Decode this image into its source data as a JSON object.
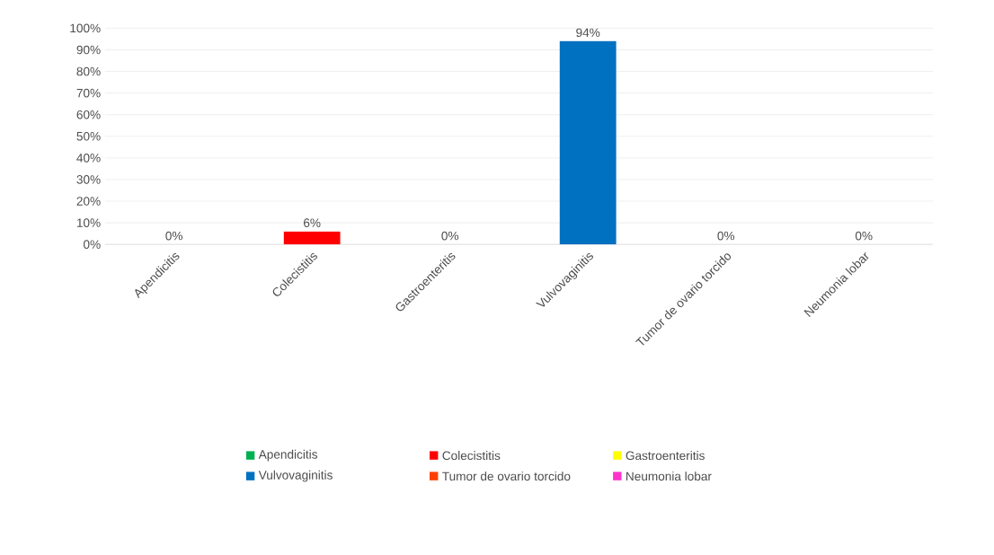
{
  "chart_data": {
    "type": "bar",
    "categories": [
      "Apendicitis",
      "Colecistitis",
      "Gastroenteritis",
      "Vulvovaginitis",
      "Tumor de ovario torcido",
      "Neumonia lobar"
    ],
    "series": [
      {
        "name": "Apendicitis",
        "color": "#00b050",
        "values": [
          0,
          null,
          null,
          null,
          null,
          null
        ],
        "value_labels": [
          "0%",
          null,
          null,
          null,
          null,
          null
        ]
      },
      {
        "name": "Colecistitis",
        "color": "#ff0000",
        "values": [
          null,
          6,
          null,
          null,
          null,
          null
        ],
        "value_labels": [
          null,
          "6%",
          null,
          null,
          null,
          null
        ]
      },
      {
        "name": "Gastroenteritis",
        "color": "#ffff00",
        "values": [
          null,
          null,
          0,
          null,
          null,
          null
        ],
        "value_labels": [
          null,
          null,
          "0%",
          null,
          null,
          null
        ]
      },
      {
        "name": "Vulvovaginitis",
        "color": "#0070c0",
        "values": [
          null,
          null,
          null,
          94,
          null,
          null
        ],
        "value_labels": [
          null,
          null,
          null,
          "94%",
          null,
          null
        ]
      },
      {
        "name": "Tumor de ovario torcido",
        "color": "#ff3d00",
        "values": [
          null,
          null,
          null,
          null,
          0,
          null
        ],
        "value_labels": [
          null,
          null,
          null,
          null,
          "0%",
          null
        ]
      },
      {
        "name": "Neumonia lobar",
        "color": "#ff33cc",
        "values": [
          null,
          null,
          null,
          null,
          null,
          0
        ],
        "value_labels": [
          null,
          null,
          null,
          null,
          null,
          "0%"
        ]
      }
    ],
    "ylim": [
      0,
      100
    ],
    "yticks": [
      {
        "value": 0,
        "label": "0%"
      },
      {
        "value": 10,
        "label": "10%"
      },
      {
        "value": 20,
        "label": "20%"
      },
      {
        "value": 30,
        "label": "30%"
      },
      {
        "value": 40,
        "label": "40%"
      },
      {
        "value": 50,
        "label": "50%"
      },
      {
        "value": 60,
        "label": "60%"
      },
      {
        "value": 70,
        "label": "70%"
      },
      {
        "value": 80,
        "label": "80%"
      },
      {
        "value": 90,
        "label": "90%"
      },
      {
        "value": 100,
        "label": "100%"
      }
    ],
    "grid": "y",
    "legend": "bottom"
  }
}
